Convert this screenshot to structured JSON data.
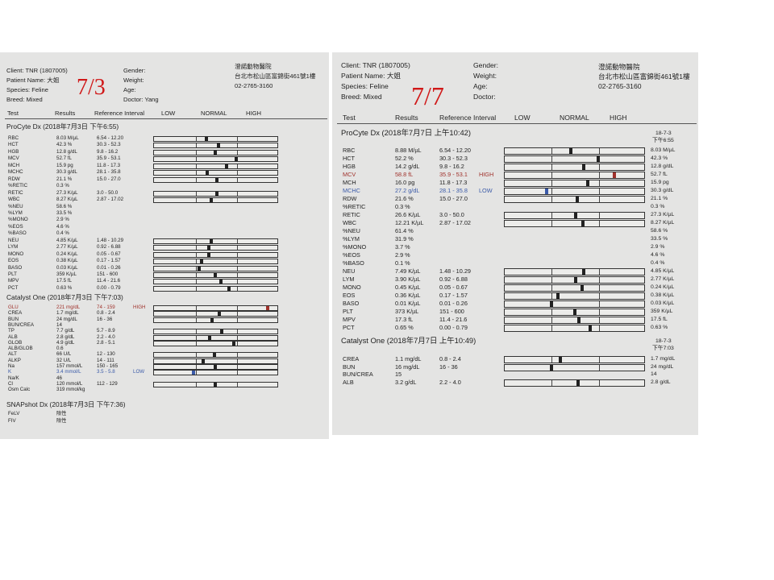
{
  "colors": {
    "high": "#a0322c",
    "low": "#3a5aa8",
    "date": "#d01818"
  },
  "documents": [
    {
      "date_note": "7/3",
      "client": "Client: TNR (1807005)",
      "patient": "Patient Name: 大姐",
      "species": "Species: Feline",
      "breed": "Breed: Mixed",
      "gender": "Gender:",
      "weight": "Weight:",
      "age": "Age:",
      "doctor": "Doctor: Yang",
      "hospital": [
        "澄諾動物醫院",
        "台北市松山區富錦街461號1樓",
        "02-2765-3160"
      ],
      "headers": {
        "test": "Test",
        "results": "Results",
        "ref": "Reference Interval",
        "low": "LOW",
        "normal": "NORMAL",
        "high": "HIGH"
      },
      "sections": [
        {
          "title": "ProCyte Dx (2018年7月3日 下午6:55)",
          "rows": [
            {
              "n": "RBC",
              "r": "8.03 M/µL",
              "v": 8.03,
              "ref": "6.54 - 12.20",
              "lo": 6.54,
              "hi": 12.2,
              "bar": true
            },
            {
              "n": "HCT",
              "r": "42.3 %",
              "v": 42.3,
              "ref": "30.3 - 52.3",
              "lo": 30.3,
              "hi": 52.3,
              "bar": true
            },
            {
              "n": "HGB",
              "r": "12.8 g/dL",
              "v": 12.8,
              "ref": "9.8 - 16.2",
              "lo": 9.8,
              "hi": 16.2,
              "bar": true
            },
            {
              "n": "MCV",
              "r": "52.7 fL",
              "v": 52.7,
              "ref": "35.9 - 53.1",
              "lo": 35.9,
              "hi": 53.1,
              "bar": true
            },
            {
              "n": "MCH",
              "r": "15.9 pg",
              "v": 15.9,
              "ref": "11.8 - 17.3",
              "lo": 11.8,
              "hi": 17.3,
              "bar": true
            },
            {
              "n": "MCHC",
              "r": "30.3 g/dL",
              "v": 30.3,
              "ref": "28.1 - 35.8",
              "lo": 28.1,
              "hi": 35.8,
              "bar": true
            },
            {
              "n": "RDW",
              "r": "21.1 %",
              "v": 21.1,
              "ref": "15.0 - 27.0",
              "lo": 15,
              "hi": 27,
              "bar": true
            },
            {
              "n": "%RETIC",
              "r": "0.3 %"
            },
            {
              "n": "RETIC",
              "r": "27.3 K/µL",
              "v": 27.3,
              "ref": "3.0 - 50.0",
              "lo": 3,
              "hi": 50,
              "bar": true
            },
            {
              "n": "WBC",
              "r": "8.27 K/µL",
              "v": 8.27,
              "ref": "2.87 - 17.02",
              "lo": 2.87,
              "hi": 17.02,
              "bar": true
            },
            {
              "n": "%NEU",
              "r": "58.6 %"
            },
            {
              "n": "%LYM",
              "r": "33.5 %"
            },
            {
              "n": "%MONO",
              "r": "2.9 %"
            },
            {
              "n": "%EOS",
              "r": "4.6 %"
            },
            {
              "n": "%BASO",
              "r": "0.4 %"
            },
            {
              "n": "NEU",
              "r": "4.85 K/µL",
              "v": 4.85,
              "ref": "1.48 - 10.29",
              "lo": 1.48,
              "hi": 10.29,
              "bar": true
            },
            {
              "n": "LYM",
              "r": "2.77 K/µL",
              "v": 2.77,
              "ref": "0.92 - 6.88",
              "lo": 0.92,
              "hi": 6.88,
              "bar": true
            },
            {
              "n": "MONO",
              "r": "0.24 K/µL",
              "v": 0.24,
              "ref": "0.05 - 0.67",
              "lo": 0.05,
              "hi": 0.67,
              "bar": true
            },
            {
              "n": "EOS",
              "r": "0.38 K/µL",
              "v": 0.38,
              "ref": "0.17 - 1.57",
              "lo": 0.17,
              "hi": 1.57,
              "bar": true
            },
            {
              "n": "BASO",
              "r": "0.03 K/µL",
              "v": 0.03,
              "ref": "0.01 - 0.26",
              "lo": 0.01,
              "hi": 0.26,
              "bar": true
            },
            {
              "n": "PLT",
              "r": "359 K/µL",
              "v": 359,
              "ref": "151 - 600",
              "lo": 151,
              "hi": 600,
              "bar": true
            },
            {
              "n": "MPV",
              "r": "17.5 fL",
              "v": 17.5,
              "ref": "11.4 - 21.6",
              "lo": 11.4,
              "hi": 21.6,
              "bar": true
            },
            {
              "n": "PCT",
              "r": "0.63 %",
              "v": 0.63,
              "ref": "0.00 - 0.79",
              "lo": 0,
              "hi": 0.79,
              "bar": true
            }
          ]
        },
        {
          "title": "Catalyst One (2018年7月3日 下午7:03)",
          "rows": [
            {
              "n": "GLU",
              "r": "221 mg/dL",
              "v": 221,
              "ref": "74 - 159",
              "lo": 74,
              "hi": 159,
              "bar": true,
              "flag": "HIGH"
            },
            {
              "n": "CREA",
              "r": "1.7 mg/dL",
              "v": 1.7,
              "ref": "0.8 - 2.4",
              "lo": 0.8,
              "hi": 2.4,
              "bar": true
            },
            {
              "n": "BUN",
              "r": "24 mg/dL",
              "v": 24,
              "ref": "16 - 36",
              "lo": 16,
              "hi": 36,
              "bar": true
            },
            {
              "n": "BUN/CREA",
              "r": "14"
            },
            {
              "n": "TP",
              "r": "7.7 g/dL",
              "v": 7.7,
              "ref": "5.7 - 8.9",
              "lo": 5.7,
              "hi": 8.9,
              "bar": true
            },
            {
              "n": "ALB",
              "r": "2.8 g/dL",
              "v": 2.8,
              "ref": "2.2 - 4.0",
              "lo": 2.2,
              "hi": 4.0,
              "bar": true
            },
            {
              "n": "GLOB",
              "r": "4.9 g/dL",
              "v": 4.9,
              "ref": "2.8 - 5.1",
              "lo": 2.8,
              "hi": 5.1,
              "bar": true
            },
            {
              "n": "ALB/GLOB",
              "r": "0.6"
            },
            {
              "n": "ALT",
              "r": "66 U/L",
              "v": 66,
              "ref": "12 - 130",
              "lo": 12,
              "hi": 130,
              "bar": true
            },
            {
              "n": "ALKP",
              "r": "32 U/L",
              "v": 32,
              "ref": "14 - 111",
              "lo": 14,
              "hi": 111,
              "bar": true
            },
            {
              "n": "Na",
              "r": "157 mmol/L",
              "v": 157,
              "ref": "150 - 165",
              "lo": 150,
              "hi": 165,
              "bar": true
            },
            {
              "n": "K",
              "r": "3.4 mmol/L",
              "v": 3.4,
              "ref": "3.5 - 5.8",
              "lo": 3.5,
              "hi": 5.8,
              "bar": true,
              "flag": "LOW"
            },
            {
              "n": "Na/K",
              "r": "46"
            },
            {
              "n": "Cl",
              "r": "120 mmol/L",
              "v": 120,
              "ref": "112 - 129",
              "lo": 112,
              "hi": 129,
              "bar": true
            },
            {
              "n": "Osm Calc",
              "r": "319 mmol/kg"
            }
          ]
        },
        {
          "title": "SNAPshot Dx (2018年7月3日 下午7:36)",
          "rows": [
            {
              "n": "FeLV",
              "r": "陰性"
            },
            {
              "n": "FIV",
              "r": "陰性"
            }
          ]
        }
      ]
    },
    {
      "date_note": "7/7",
      "client": "Client: TNR (1807005)",
      "patient": "Patient Name: 大姐",
      "species": "Species: Feline",
      "breed": "Breed: Mixed",
      "gender": "Gender:",
      "weight": "Weight:",
      "age": "Age:",
      "doctor": "Doctor:",
      "hospital": [
        "澄諾動物醫院",
        "台北市松山區富錦街461號1樓",
        "02-2765-3160"
      ],
      "headers": {
        "test": "Test",
        "results": "Results",
        "ref": "Reference Interval",
        "low": "LOW",
        "normal": "NORMAL",
        "high": "HIGH"
      },
      "sections": [
        {
          "title": "ProCyte Dx (2018年7月7日 上午10:42)",
          "prev_head": [
            "18-7-3",
            "下午6:55"
          ],
          "rows": [
            {
              "n": "RBC",
              "r": "8.88 M/µL",
              "v": 8.88,
              "ref": "6.54 - 12.20",
              "lo": 6.54,
              "hi": 12.2,
              "bar": true,
              "p": "8.03 M/µL"
            },
            {
              "n": "HCT",
              "r": "52.2 %",
              "v": 52.2,
              "ref": "30.3 - 52.3",
              "lo": 30.3,
              "hi": 52.3,
              "bar": true,
              "p": "42.3 %"
            },
            {
              "n": "HGB",
              "r": "14.2 g/dL",
              "v": 14.2,
              "ref": "9.8 - 16.2",
              "lo": 9.8,
              "hi": 16.2,
              "bar": true,
              "p": "12.8 g/dL"
            },
            {
              "n": "MCV",
              "r": "58.8 fL",
              "v": 58.8,
              "ref": "35.9 - 53.1",
              "lo": 35.9,
              "hi": 53.1,
              "bar": true,
              "flag": "HIGH",
              "p": "52.7 fL"
            },
            {
              "n": "MCH",
              "r": "16.0 pg",
              "v": 16,
              "ref": "11.8 - 17.3",
              "lo": 11.8,
              "hi": 17.3,
              "bar": true,
              "p": "15.9 pg"
            },
            {
              "n": "MCHC",
              "r": "27.2 g/dL",
              "v": 27.2,
              "ref": "28.1 - 35.8",
              "lo": 28.1,
              "hi": 35.8,
              "bar": true,
              "flag": "LOW",
              "p": "30.3 g/dL"
            },
            {
              "n": "RDW",
              "r": "21.6 %",
              "v": 21.6,
              "ref": "15.0 - 27.0",
              "lo": 15,
              "hi": 27,
              "bar": true,
              "p": "21.1 %"
            },
            {
              "n": "%RETIC",
              "r": "0.3 %",
              "p": "0.3 %"
            },
            {
              "n": "RETIC",
              "r": "26.6 K/µL",
              "v": 26.6,
              "ref": "3.0 - 50.0",
              "lo": 3,
              "hi": 50,
              "bar": true,
              "p": "27.3 K/µL"
            },
            {
              "n": "WBC",
              "r": "12.21 K/µL",
              "v": 12.21,
              "ref": "2.87 - 17.02",
              "lo": 2.87,
              "hi": 17.02,
              "bar": true,
              "p": "8.27 K/µL"
            },
            {
              "n": "%NEU",
              "r": "61.4 %",
              "p": "58.6 %"
            },
            {
              "n": "%LYM",
              "r": "31.9 %",
              "p": "33.5 %"
            },
            {
              "n": "%MONO",
              "r": "3.7 %",
              "p": "2.9 %"
            },
            {
              "n": "%EOS",
              "r": "2.9 %",
              "p": "4.6 %"
            },
            {
              "n": "%BASO",
              "r": "0.1 %",
              "p": "0.4 %"
            },
            {
              "n": "NEU",
              "r": "7.49 K/µL",
              "v": 7.49,
              "ref": "1.48 - 10.29",
              "lo": 1.48,
              "hi": 10.29,
              "bar": true,
              "p": "4.85 K/µL"
            },
            {
              "n": "LYM",
              "r": "3.90 K/µL",
              "v": 3.9,
              "ref": "0.92 - 6.88",
              "lo": 0.92,
              "hi": 6.88,
              "bar": true,
              "p": "2.77 K/µL"
            },
            {
              "n": "MONO",
              "r": "0.45 K/µL",
              "v": 0.45,
              "ref": "0.05 - 0.67",
              "lo": 0.05,
              "hi": 0.67,
              "bar": true,
              "p": "0.24 K/µL"
            },
            {
              "n": "EOS",
              "r": "0.36 K/µL",
              "v": 0.36,
              "ref": "0.17 - 1.57",
              "lo": 0.17,
              "hi": 1.57,
              "bar": true,
              "p": "0.38 K/µL"
            },
            {
              "n": "BASO",
              "r": "0.01 K/µL",
              "v": 0.01,
              "ref": "0.01 - 0.26",
              "lo": 0.01,
              "hi": 0.26,
              "bar": true,
              "p": "0.03 K/µL"
            },
            {
              "n": "PLT",
              "r": "373 K/µL",
              "v": 373,
              "ref": "151 - 600",
              "lo": 151,
              "hi": 600,
              "bar": true,
              "p": "359 K/µL"
            },
            {
              "n": "MPV",
              "r": "17.3 fL",
              "v": 17.3,
              "ref": "11.4 - 21.6",
              "lo": 11.4,
              "hi": 21.6,
              "bar": true,
              "p": "17.5 fL"
            },
            {
              "n": "PCT",
              "r": "0.65 %",
              "v": 0.65,
              "ref": "0.00 - 0.79",
              "lo": 0,
              "hi": 0.79,
              "bar": true,
              "p": "0.63 %"
            }
          ]
        },
        {
          "title": "Catalyst One (2018年7月7日 上午10:49)",
          "prev_head": [
            "18-7-3",
            "下午7:03"
          ],
          "rows": [
            {
              "n": "CREA",
              "r": "1.1 mg/dL",
              "v": 1.1,
              "ref": "0.8 - 2.4",
              "lo": 0.8,
              "hi": 2.4,
              "bar": true,
              "p": "1.7 mg/dL"
            },
            {
              "n": "BUN",
              "r": "16 mg/dL",
              "v": 16,
              "ref": "16 - 36",
              "lo": 16,
              "hi": 36,
              "bar": true,
              "p": "24 mg/dL"
            },
            {
              "n": "BUN/CREA",
              "r": "15",
              "p": "14"
            },
            {
              "n": "ALB",
              "r": "3.2 g/dL",
              "v": 3.2,
              "ref": "2.2 - 4.0",
              "lo": 2.2,
              "hi": 4.0,
              "bar": true,
              "p": "2.8 g/dL"
            }
          ]
        }
      ]
    }
  ]
}
